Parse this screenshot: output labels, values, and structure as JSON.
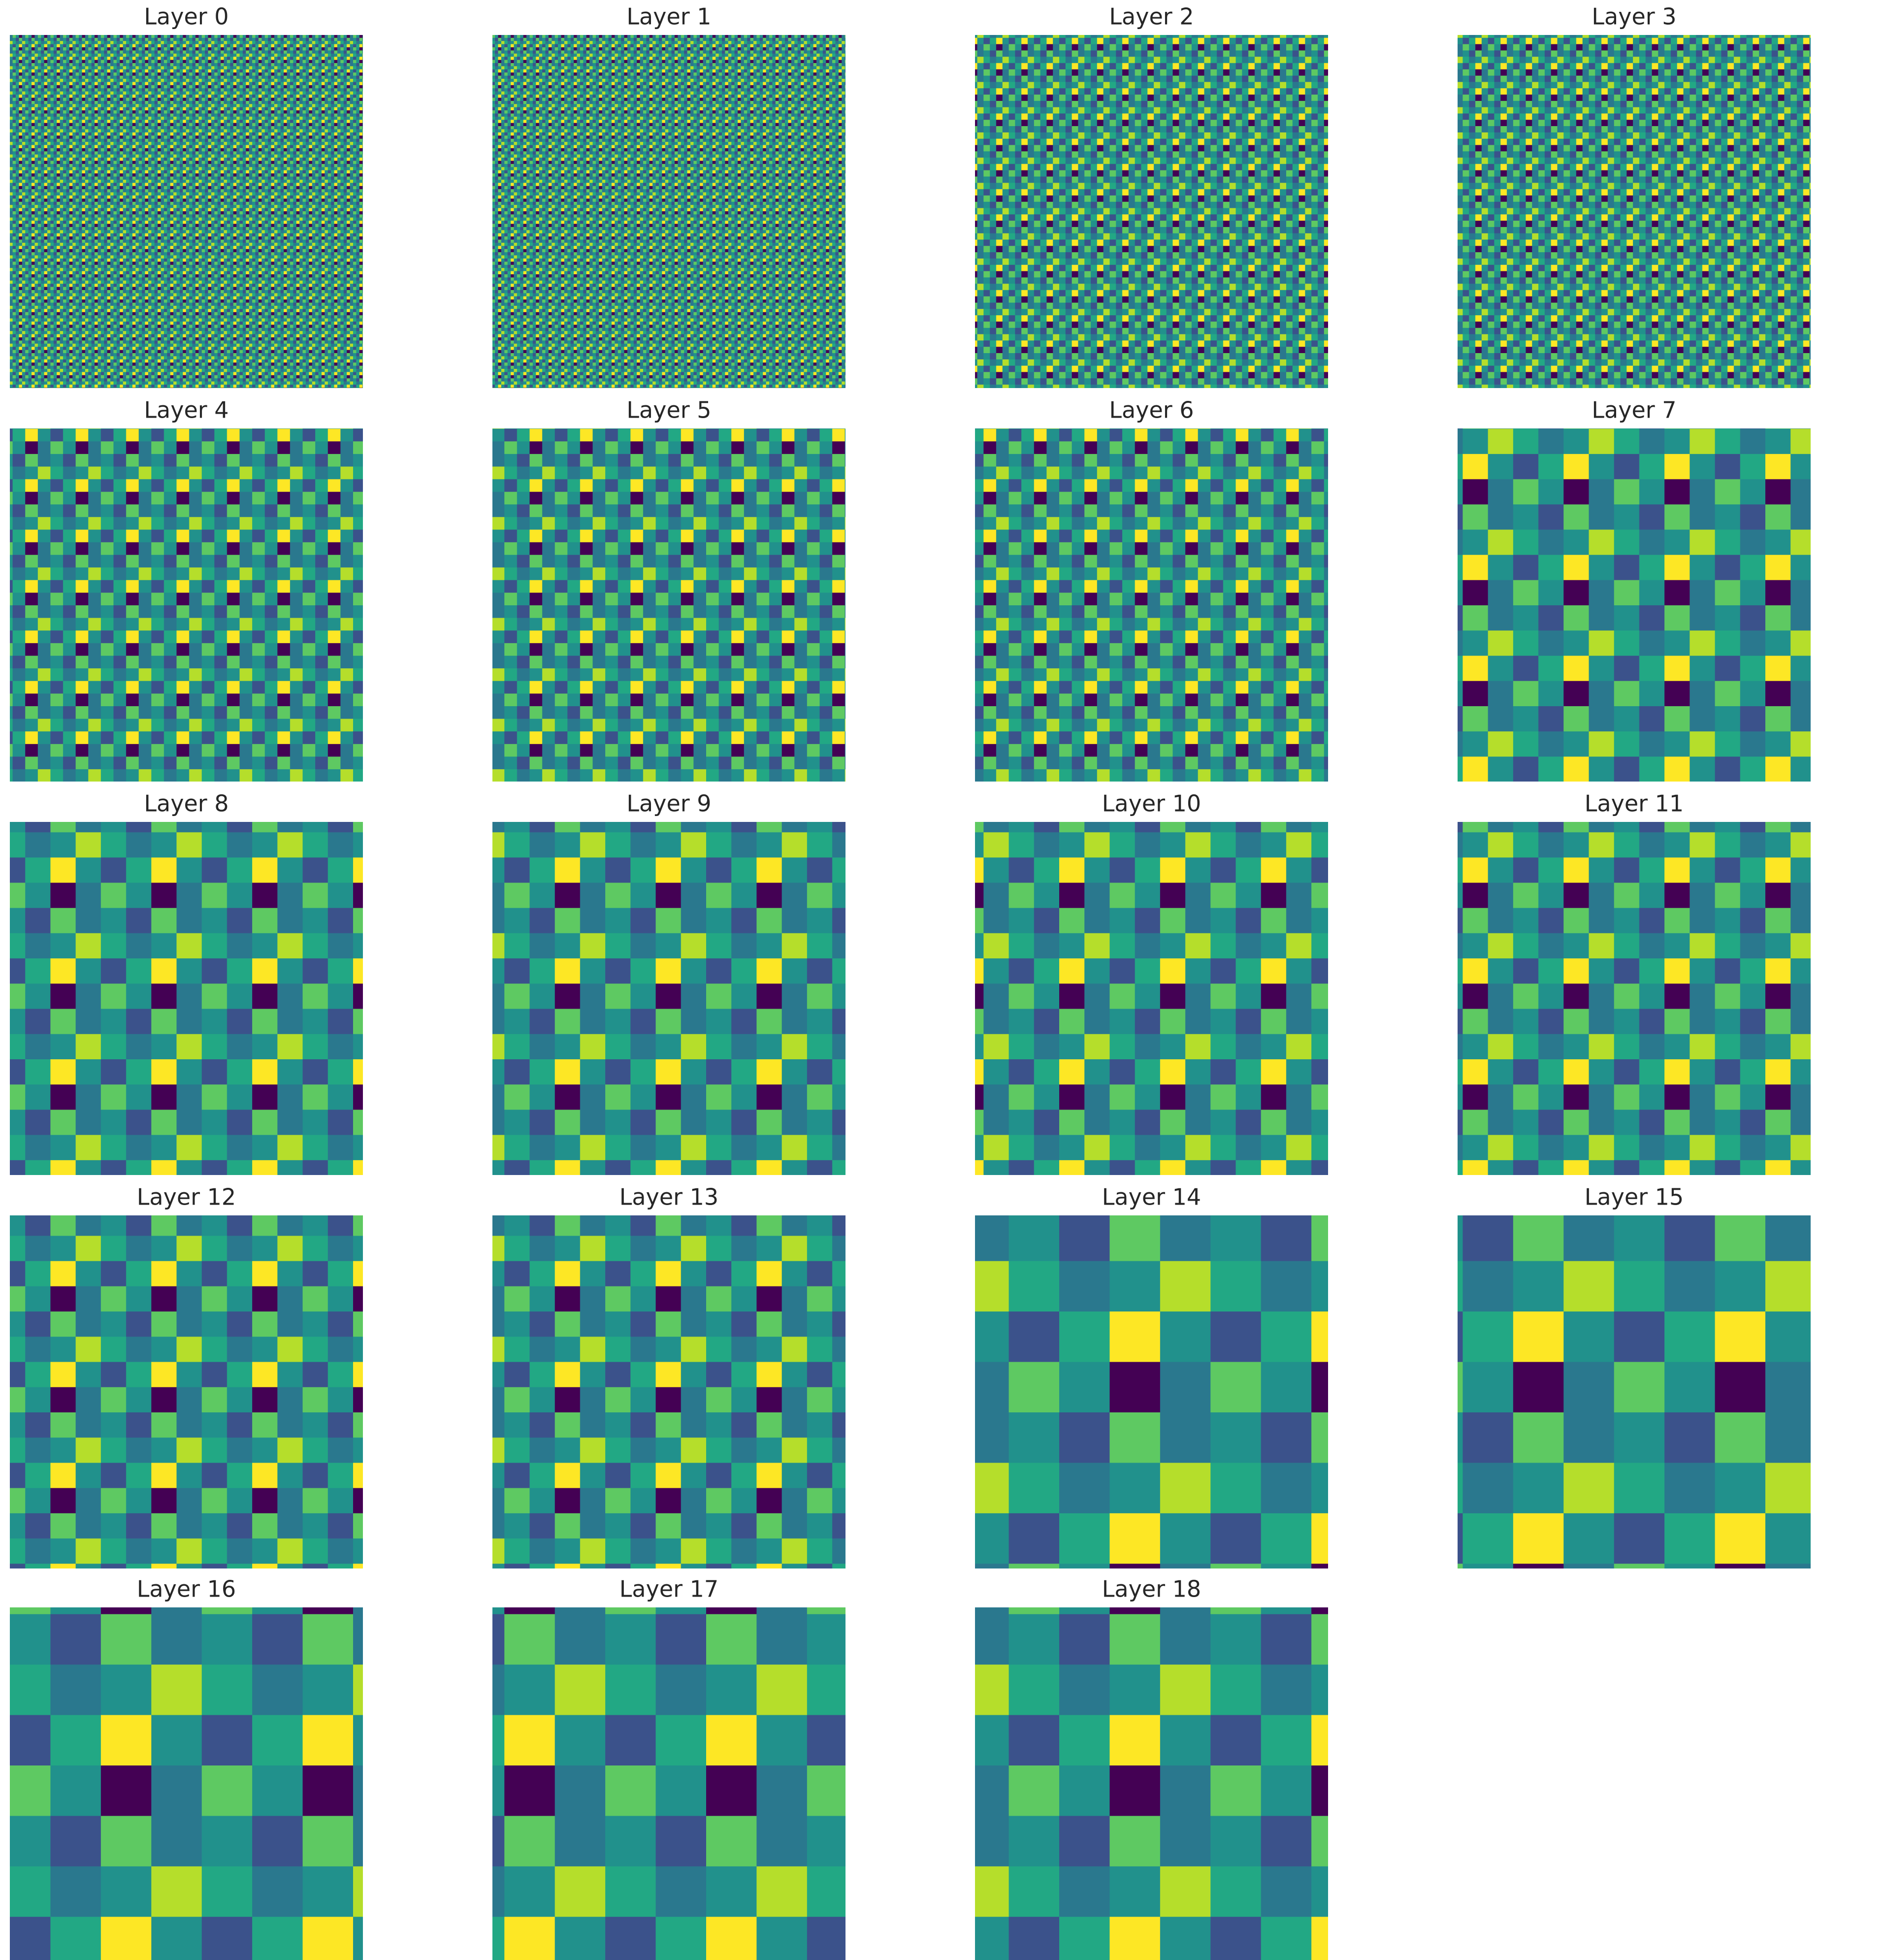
{
  "panels": [
    {
      "title": "Layer 0"
    },
    {
      "title": "Layer 1"
    },
    {
      "title": "Layer 2"
    },
    {
      "title": "Layer 3"
    },
    {
      "title": "Layer 4"
    },
    {
      "title": "Layer 5"
    },
    {
      "title": "Layer 6"
    },
    {
      "title": "Layer 7"
    },
    {
      "title": "Layer 8"
    },
    {
      "title": "Layer 9"
    },
    {
      "title": "Layer 10"
    },
    {
      "title": "Layer 11"
    },
    {
      "title": "Layer 12"
    },
    {
      "title": "Layer 13"
    },
    {
      "title": "Layer 14"
    },
    {
      "title": "Layer 15"
    },
    {
      "title": "Layer 16"
    },
    {
      "title": "Layer 17"
    },
    {
      "title": "Layer 18"
    }
  ]
}
